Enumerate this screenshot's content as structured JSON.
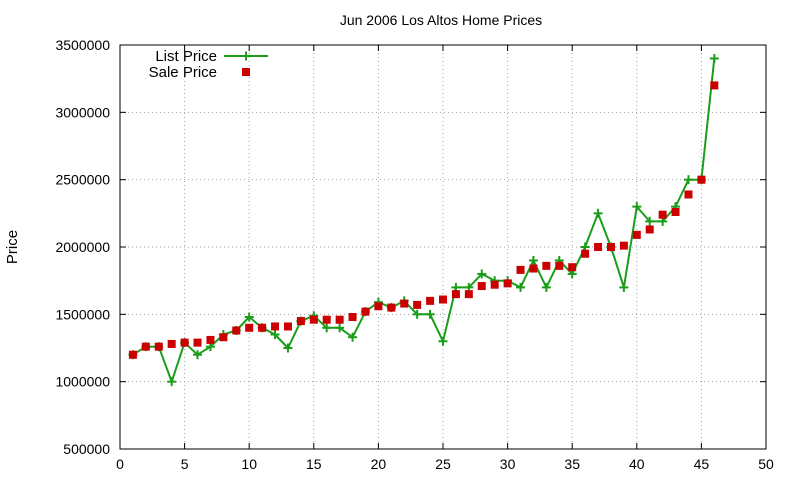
{
  "chart_data": {
    "type": "line",
    "title": "Jun 2006 Los Altos Home Prices",
    "xlabel": "",
    "ylabel": "Price",
    "xlim": [
      0,
      50
    ],
    "ylim": [
      500000,
      3500000
    ],
    "xticks": [
      0,
      5,
      10,
      15,
      20,
      25,
      30,
      35,
      40,
      45,
      50
    ],
    "yticks": [
      500000,
      1000000,
      1500000,
      2000000,
      2500000,
      3000000,
      3500000
    ],
    "grid": true,
    "legend_position": "top-left",
    "x": [
      1,
      2,
      3,
      4,
      5,
      6,
      7,
      8,
      9,
      10,
      11,
      12,
      13,
      14,
      15,
      16,
      17,
      18,
      19,
      20,
      21,
      22,
      23,
      24,
      25,
      26,
      27,
      28,
      29,
      30,
      31,
      32,
      33,
      34,
      35,
      36,
      37,
      38,
      39,
      40,
      41,
      42,
      43,
      44,
      45,
      46
    ],
    "series": [
      {
        "name": "List Price",
        "style": "line+cross",
        "color": "#1a9e1a",
        "values": [
          1200000,
          1260000,
          1260000,
          1000000,
          1290000,
          1200000,
          1260000,
          1350000,
          1380000,
          1480000,
          1400000,
          1350000,
          1250000,
          1450000,
          1490000,
          1400000,
          1400000,
          1330000,
          1520000,
          1590000,
          1550000,
          1600000,
          1500000,
          1500000,
          1300000,
          1700000,
          1700000,
          1800000,
          1750000,
          1750000,
          1700000,
          1900000,
          1700000,
          1900000,
          1800000,
          2000000,
          2250000,
          2000000,
          1700000,
          2300000,
          2190000,
          2190000,
          2300000,
          2500000,
          2500000,
          3400000
        ]
      },
      {
        "name": "Sale Price",
        "style": "square",
        "color": "#cc0000",
        "values": [
          1200000,
          1260000,
          1260000,
          1280000,
          1290000,
          1290000,
          1310000,
          1330000,
          1380000,
          1400000,
          1400000,
          1410000,
          1410000,
          1450000,
          1460000,
          1460000,
          1460000,
          1480000,
          1520000,
          1560000,
          1550000,
          1580000,
          1570000,
          1600000,
          1610000,
          1650000,
          1650000,
          1710000,
          1720000,
          1730000,
          1830000,
          1840000,
          1860000,
          1860000,
          1850000,
          1950000,
          2000000,
          2000000,
          2010000,
          2090000,
          2130000,
          2240000,
          2260000,
          2390000,
          2500000,
          3200000
        ]
      }
    ]
  }
}
